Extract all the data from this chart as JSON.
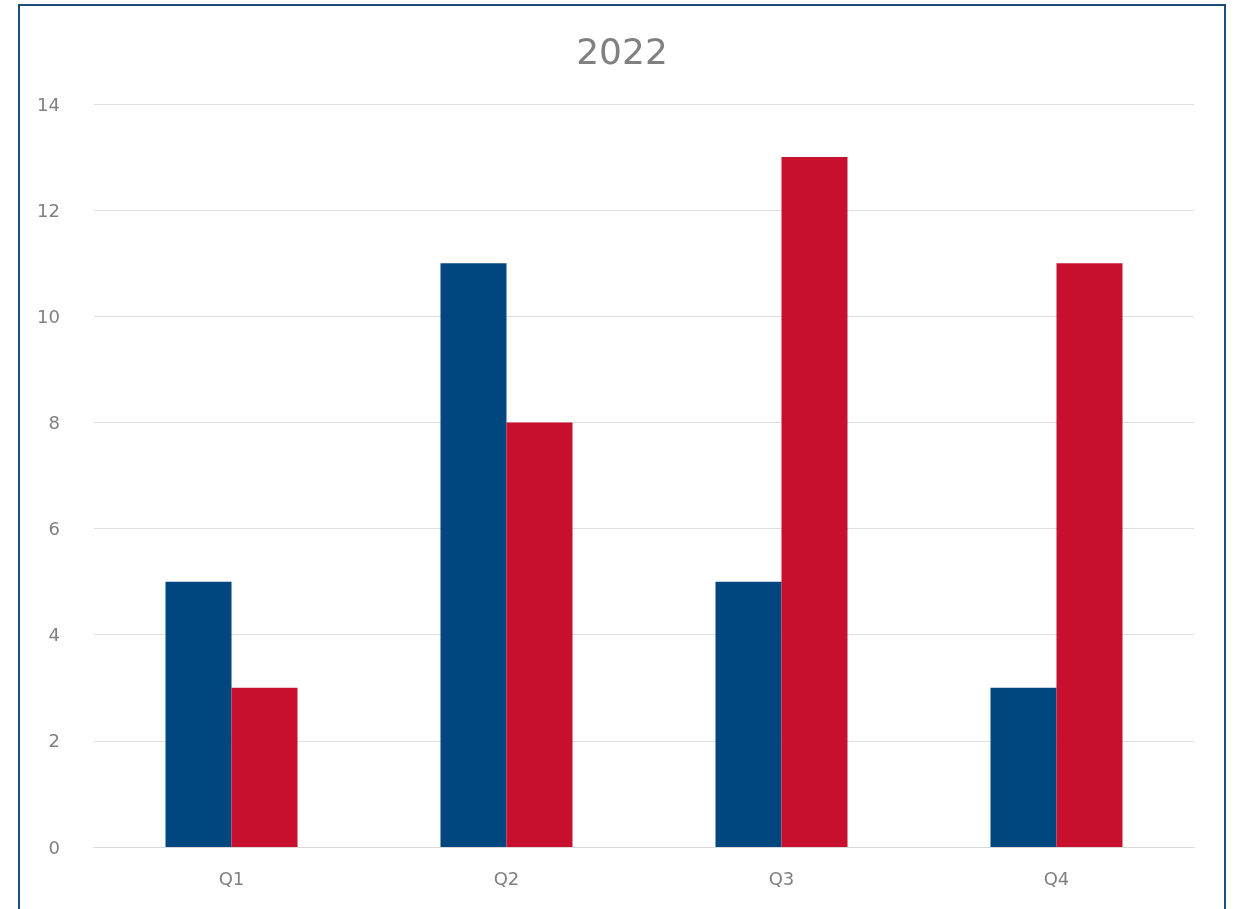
{
  "chart_data": {
    "type": "bar",
    "title": "2022",
    "categories": [
      "Q1",
      "Q2",
      "Q3",
      "Q4"
    ],
    "series": [
      {
        "color": "#00467f",
        "values": [
          5,
          11,
          5,
          3
        ]
      },
      {
        "color": "#c8102e",
        "values": [
          3,
          8,
          13,
          11
        ]
      }
    ],
    "ylim": [
      0,
      14
    ],
    "yticks": [
      0,
      2,
      4,
      6,
      8,
      10,
      12,
      14
    ],
    "grid": "y"
  }
}
